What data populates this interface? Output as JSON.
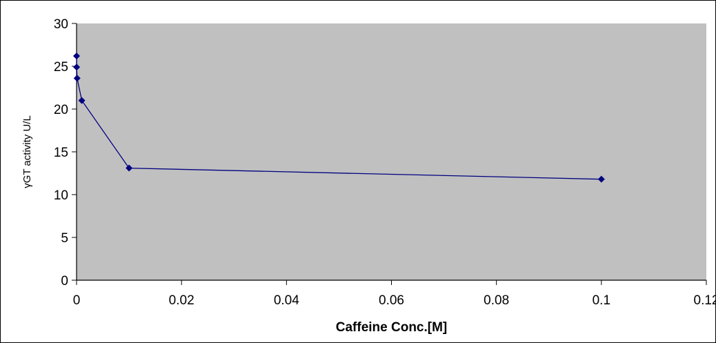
{
  "chart_data": {
    "type": "line",
    "title": "",
    "xlabel": "Caffeine Conc.[M]",
    "ylabel": "γGT activity U/L",
    "xlim": [
      0,
      0.12
    ],
    "ylim": [
      0,
      30
    ],
    "xticks": [
      0,
      0.02,
      0.04,
      0.06,
      0.08,
      0.1,
      0.12
    ],
    "xtick_labels": [
      "0",
      "0.02",
      "0.04",
      "0.06",
      "0.08",
      "0.1",
      "0.12"
    ],
    "yticks": [
      0,
      5,
      10,
      15,
      20,
      25,
      30
    ],
    "ytick_labels": [
      "0",
      "5",
      "10",
      "15",
      "20",
      "25",
      "30"
    ],
    "grid": false,
    "legend": "none",
    "colors": {
      "plot_bg": "#c0c0c0",
      "series": "#000080"
    },
    "series": [
      {
        "marker": "diamond",
        "x": [
          0,
          1e-05,
          0.0001,
          0.001,
          0.01,
          0.1
        ],
        "y": [
          26.2,
          24.9,
          23.6,
          21.0,
          13.1,
          11.8
        ]
      }
    ]
  }
}
